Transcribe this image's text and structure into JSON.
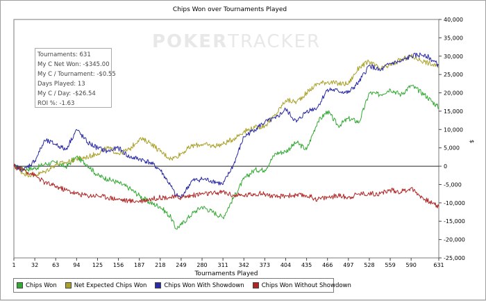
{
  "chart_data": {
    "type": "line",
    "title": "Chips Won over Tournaments Played",
    "xlabel": "Tournaments Played",
    "ylabel": "",
    "xlim": [
      1,
      631
    ],
    "ylim": [
      -25000,
      40000
    ],
    "x_ticks": [
      1,
      32,
      63,
      94,
      125,
      156,
      187,
      218,
      249,
      280,
      311,
      342,
      373,
      404,
      435,
      466,
      497,
      528,
      559,
      590,
      631
    ],
    "y_ticks": [
      40000,
      35000,
      30000,
      25000,
      20000,
      15000,
      10000,
      5000,
      0,
      -5000,
      -10000,
      -15000,
      -20000,
      -25000
    ],
    "y_tick_labels": [
      "40,000",
      "35,000",
      "30,000",
      "25,000",
      "20,000",
      "15,000",
      "10,000",
      "5,000",
      "0",
      "-5,000",
      "-10,000",
      "-15,000",
      "-20,000",
      "-25,000"
    ],
    "y_axis_symbol": "$",
    "grid": false,
    "legend_position": "bottom-left",
    "x": [
      1,
      16,
      32,
      47,
      63,
      78,
      94,
      110,
      125,
      140,
      156,
      172,
      187,
      203,
      218,
      234,
      241,
      249,
      265,
      280,
      296,
      311,
      327,
      342,
      358,
      373,
      389,
      404,
      420,
      435,
      451,
      466,
      482,
      497,
      513,
      528,
      544,
      559,
      575,
      590,
      610,
      631
    ],
    "series": [
      {
        "name": "Chips Won",
        "color": "#33aa33",
        "values": [
          0,
          -800,
          -600,
          600,
          1000,
          -200,
          2500,
          400,
          -2500,
          -3500,
          -4500,
          -6000,
          -8000,
          -10000,
          -11000,
          -14000,
          -17000,
          -16000,
          -13000,
          -11000,
          -12500,
          -14000,
          -8500,
          -3500,
          -1000,
          -1000,
          3500,
          4000,
          6500,
          4500,
          12000,
          15000,
          11000,
          13000,
          12000,
          20000,
          19500,
          21000,
          19500,
          22000,
          19500,
          16000
        ]
      },
      {
        "name": "Net Expected Chips Won",
        "color": "#aaa12a",
        "values": [
          0,
          -2000,
          -2500,
          -1500,
          500,
          1000,
          2000,
          2500,
          3500,
          5000,
          3500,
          4500,
          7500,
          6500,
          4000,
          2000,
          2500,
          3500,
          5500,
          6000,
          5500,
          6000,
          7500,
          9500,
          10500,
          11000,
          14000,
          18000,
          17500,
          20000,
          22500,
          23000,
          22500,
          22500,
          27000,
          28500,
          26500,
          27500,
          29000,
          30000,
          28500,
          27000
        ]
      },
      {
        "name": "Chips Won With Showdown",
        "color": "#2a2aa3",
        "values": [
          0,
          -1000,
          1500,
          7000,
          6000,
          4500,
          10000,
          6500,
          5000,
          4000,
          5000,
          2500,
          2000,
          1000,
          -1000,
          -5500,
          -8000,
          -8500,
          -4000,
          -3500,
          -4000,
          -5000,
          500,
          8000,
          10000,
          12000,
          13000,
          15500,
          12000,
          15000,
          16000,
          21000,
          20500,
          20000,
          23000,
          27500,
          26000,
          28000,
          28500,
          30000,
          30500,
          27500
        ]
      },
      {
        "name": "Chips Won Without Showdown",
        "color": "#b02424",
        "values": [
          0,
          -1000,
          -2500,
          -4500,
          -5500,
          -6500,
          -7500,
          -8000,
          -8000,
          -8500,
          -9000,
          -9500,
          -9500,
          -9000,
          -8500,
          -8500,
          -8500,
          -8500,
          -8000,
          -7500,
          -7500,
          -7000,
          -8000,
          -8000,
          -7500,
          -7500,
          -8500,
          -8000,
          -8000,
          -8000,
          -9000,
          -8500,
          -8000,
          -8500,
          -7500,
          -7500,
          -7500,
          -6500,
          -7000,
          -6000,
          -9000,
          -11000
        ]
      }
    ]
  },
  "watermark": {
    "text": "POKER",
    "text2": "TRACKER"
  },
  "stats_box": {
    "lines": [
      "Tournaments: 631",
      "My C Net Won: -$345.00",
      "My C / Tournament: -$0.55",
      "Days Played: 13",
      "My C / Day: -$26.54",
      "ROI %: -1.63"
    ]
  }
}
